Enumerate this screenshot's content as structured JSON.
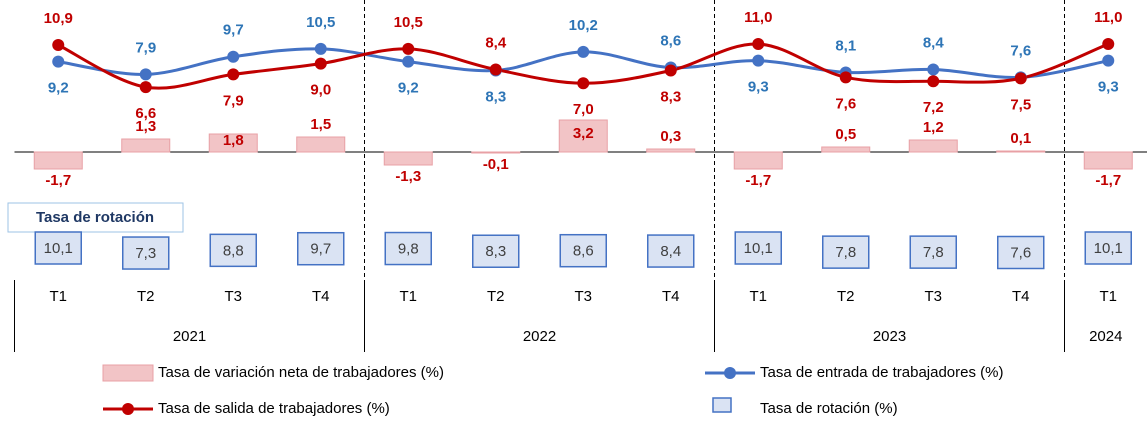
{
  "chart_data": {
    "type": "combo",
    "categories": [
      "T1",
      "T2",
      "T3",
      "T4",
      "T1",
      "T2",
      "T3",
      "T4",
      "T1",
      "T2",
      "T3",
      "T4",
      "T1"
    ],
    "years": [
      "2021",
      "2022",
      "2023",
      "2024"
    ],
    "rotation_box_label": "Tasa de rotación",
    "series": [
      {
        "name": "Tasa de variación neta de trabajadores (%)",
        "kind": "bar",
        "color": "#f2c4c6",
        "stroke": "#e8a0a5",
        "label_color": "#c00000",
        "values": [
          -1.7,
          1.3,
          1.8,
          1.5,
          -1.3,
          -0.1,
          3.2,
          0.3,
          -1.7,
          0.5,
          1.2,
          0.1,
          -1.7
        ],
        "value_labels": [
          "-1,7",
          "1,3",
          "1,8",
          "1,5",
          "-1,3",
          "-0,1",
          "3,2",
          "0,3",
          "-1,7",
          "0,5",
          "1,2",
          "0,1",
          "-1,7"
        ]
      },
      {
        "name": "Tasa de entrada de trabajadores (%)",
        "kind": "line",
        "color": "#4472c4",
        "label_color": "#2e75b6",
        "values": [
          9.2,
          7.9,
          9.7,
          10.5,
          9.2,
          8.3,
          10.2,
          8.6,
          9.3,
          8.1,
          8.4,
          7.6,
          9.3
        ],
        "value_labels": [
          "9,2",
          "7,9",
          "9,7",
          "10,5",
          "9,2",
          "8,3",
          "10,2",
          "8,6",
          "9,3",
          "8,1",
          "8,4",
          "7,6",
          "9,3"
        ]
      },
      {
        "name": "Tasa de salida de trabajadores (%)",
        "kind": "line",
        "color": "#c00000",
        "label_color": "#c00000",
        "values": [
          10.9,
          6.6,
          7.9,
          9.0,
          10.5,
          8.4,
          7.0,
          8.3,
          11.0,
          7.6,
          7.2,
          7.5,
          11.0
        ],
        "value_labels": [
          "10,9",
          "6,6",
          "7,9",
          "9,0",
          "10,5",
          "8,4",
          "7,0",
          "8,3",
          "11,0",
          "7,6",
          "7,2",
          "7,5",
          "11,0"
        ]
      },
      {
        "name": "Tasa de rotación (%)",
        "kind": "box",
        "color": "#dae3f3",
        "stroke": "#4472c4",
        "label_color": "#404040",
        "values": [
          10.1,
          7.3,
          8.8,
          9.7,
          9.8,
          8.3,
          8.6,
          8.4,
          10.1,
          7.8,
          7.8,
          7.6,
          10.1
        ],
        "value_labels": [
          "10,1",
          "7,3",
          "8,8",
          "9,7",
          "9,8",
          "8,3",
          "8,6",
          "8,4",
          "10,1",
          "7,8",
          "7,8",
          "7,6",
          "10,1"
        ]
      }
    ]
  }
}
